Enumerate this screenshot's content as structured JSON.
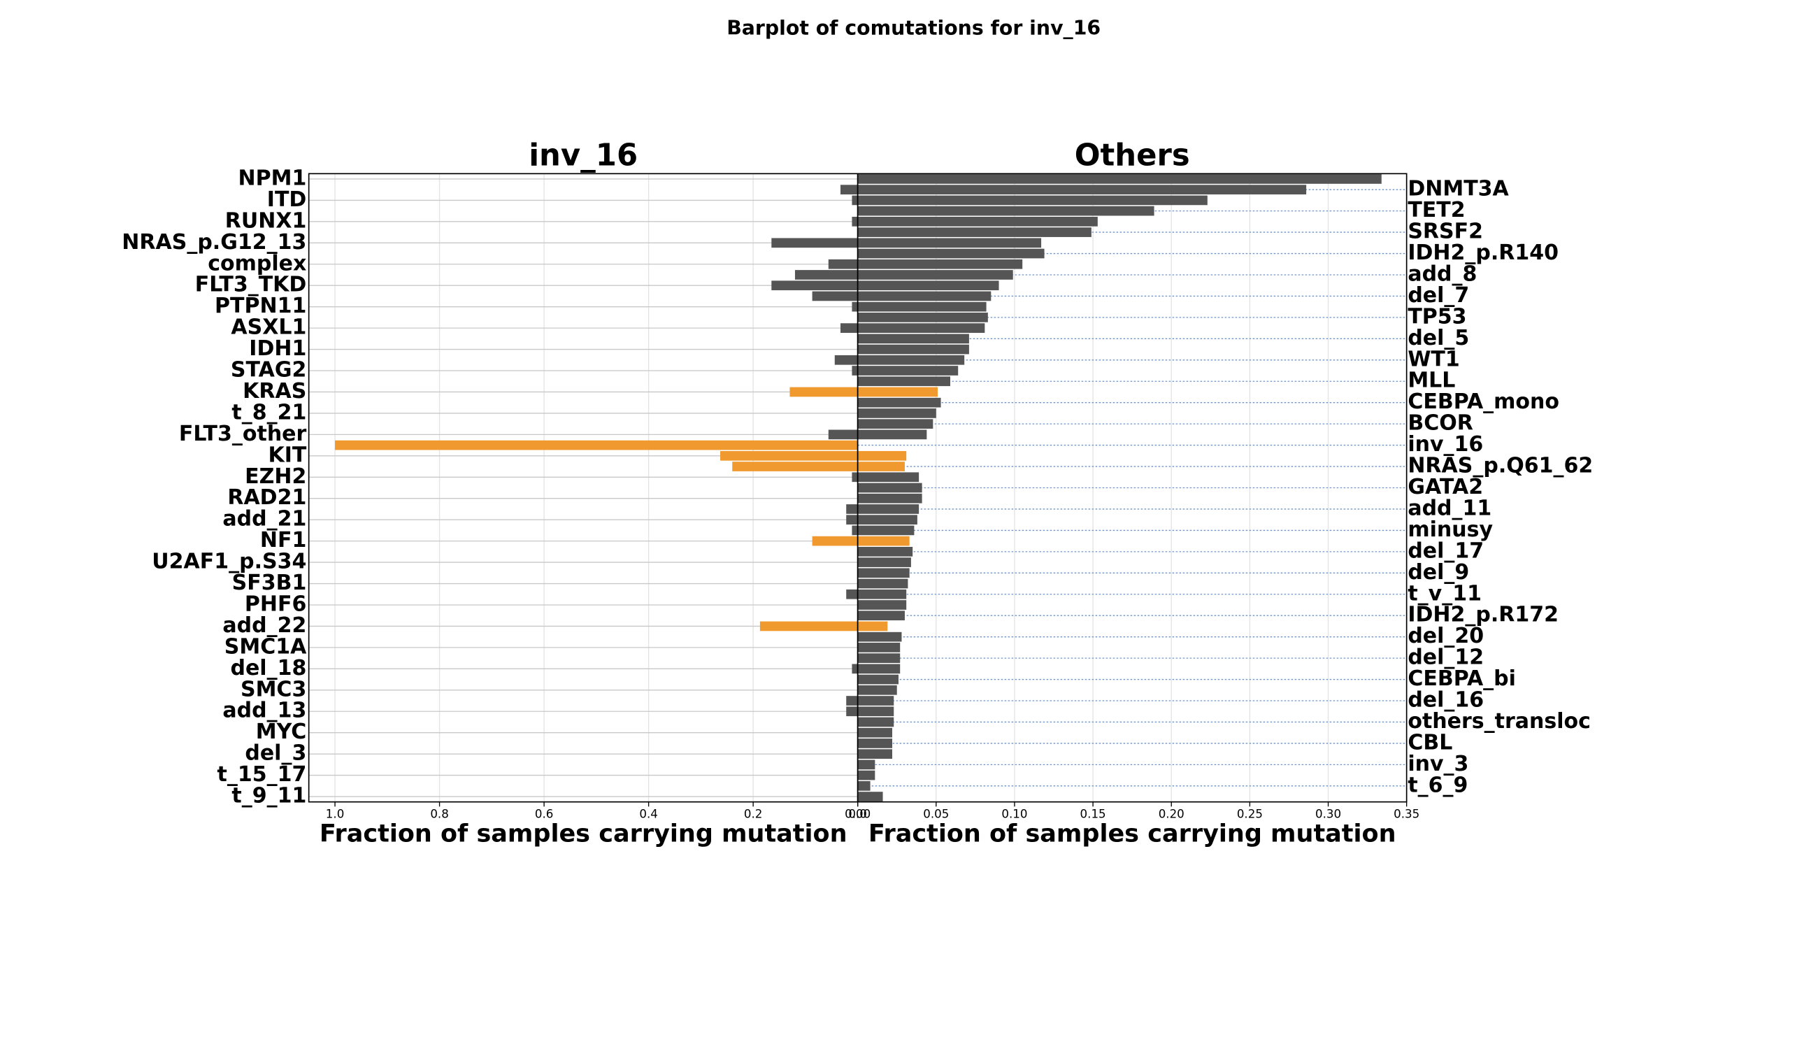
{
  "chart_data": {
    "type": "bar",
    "title": "Barplot  of comutations for inv_16",
    "categories": [
      "NPM1",
      "DNMT3A",
      "ITD",
      "TET2",
      "RUNX1",
      "SRSF2",
      "NRAS_p.G12_13",
      "IDH2_p.R140",
      "complex",
      "add_8",
      "FLT3_TKD",
      "del_7",
      "PTPN11",
      "TP53",
      "ASXL1",
      "del_5",
      "IDH1",
      "WT1",
      "STAG2",
      "MLL",
      "KRAS",
      "CEBPA_mono",
      "t_8_21",
      "BCOR",
      "FLT3_other",
      "inv_16",
      "KIT",
      "NRAS_p.Q61_62",
      "EZH2",
      "GATA2",
      "RAD21",
      "add_11",
      "add_21",
      "minusy",
      "NF1",
      "del_17",
      "U2AF1_p.S34",
      "del_9",
      "SF3B1",
      "t_v_11",
      "PHF6",
      "IDH2_p.R172",
      "add_22",
      "del_20",
      "SMC1A",
      "del_12",
      "del_18",
      "CEBPA_bi",
      "SMC3",
      "del_16",
      "add_13",
      "others_transloc",
      "MYC",
      "CBL",
      "del_3",
      "inv_3",
      "t_15_17",
      "t_6_9",
      "t_9_11"
    ],
    "color": "#555555",
    "highlight_color": "#f0992f",
    "highlighted": [
      "KRAS",
      "inv_16",
      "KIT",
      "NRAS_p.Q61_62",
      "NF1",
      "add_22"
    ],
    "grid": true,
    "panels": [
      {
        "title": "inv_16",
        "xlabel": "Fraction of samples carrying mutation",
        "xlim": [
          1.05,
          0
        ],
        "xticks": [
          {
            "value": 1.0,
            "label": "1.0"
          },
          0.8,
          0.6,
          0.4,
          0.2,
          {
            "value": 0,
            "label": "0.0"
          }
        ],
        "values": [
          0,
          0.033,
          0.011,
          0,
          0.011,
          0,
          0.165,
          0,
          0.056,
          0.12,
          0.165,
          0.087,
          0.011,
          0,
          0.033,
          0,
          0,
          0.044,
          0.011,
          0,
          0.13,
          0,
          0,
          0,
          0.056,
          1.0,
          0.263,
          0.24,
          0.011,
          0,
          0,
          0.022,
          0.022,
          0.011,
          0.087,
          0,
          0,
          0,
          0,
          0.022,
          0,
          0,
          0.187,
          0,
          0,
          0,
          0.011,
          0,
          0,
          0.022,
          0.022,
          0,
          0,
          0,
          0,
          0,
          0,
          0,
          0
        ]
      },
      {
        "title": "Others",
        "xlabel": "Fraction of samples carrying mutation",
        "xlim": [
          0,
          0.35
        ],
        "xticks": [
          {
            "value": 0,
            "label": "0.00"
          },
          0.05,
          {
            "value": 0.1,
            "label": "0.10"
          },
          0.15,
          {
            "value": 0.2,
            "label": "0.20"
          },
          0.25,
          {
            "value": 0.3,
            "label": "0.30"
          },
          0.35
        ],
        "values": [
          0.334,
          0.286,
          0.223,
          0.189,
          0.153,
          0.149,
          0.117,
          0.119,
          0.105,
          0.099,
          0.09,
          0.085,
          0.082,
          0.083,
          0.081,
          0.071,
          0.071,
          0.068,
          0.064,
          0.059,
          0.051,
          0.053,
          0.05,
          0.048,
          0.044,
          0,
          0.031,
          0.03,
          0.039,
          0.041,
          0.041,
          0.039,
          0.038,
          0.036,
          0.033,
          0.035,
          0.034,
          0.033,
          0.032,
          0.031,
          0.031,
          0.03,
          0.019,
          0.028,
          0.027,
          0.027,
          0.027,
          0.026,
          0.025,
          0.023,
          0.023,
          0.023,
          0.022,
          0.022,
          0.022,
          0.011,
          0.011,
          0.008,
          0.016
        ]
      }
    ]
  }
}
